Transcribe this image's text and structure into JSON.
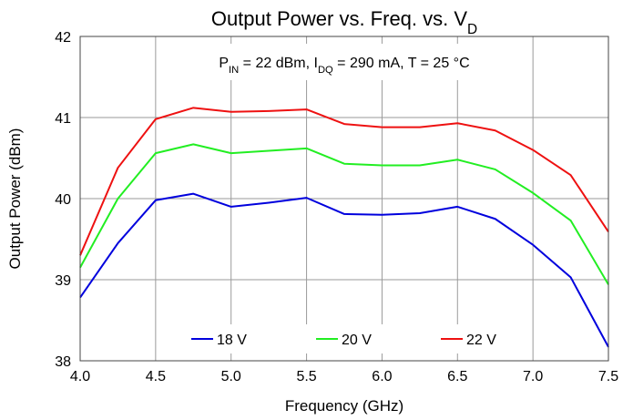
{
  "chart_data": {
    "type": "line",
    "title": [
      {
        "text": "Output Power vs. Freq. vs. V"
      },
      {
        "text": "D",
        "sub": true
      }
    ],
    "annotation": [
      {
        "text": "P"
      },
      {
        "text": "IN",
        "sub": true
      },
      {
        "text": " = 22 dBm, I"
      },
      {
        "text": "DQ",
        "sub": true
      },
      {
        "text": " = 290 mA, T = 25 °C"
      }
    ],
    "x_label": "Frequency (GHz)",
    "y_label": "Output Power (dBm)",
    "x": [
      4.0,
      4.25,
      4.5,
      4.75,
      5.0,
      5.25,
      5.5,
      5.75,
      6.0,
      6.25,
      6.5,
      6.75,
      7.0,
      7.25,
      7.5
    ],
    "series": [
      {
        "name": "18 V",
        "color": "#0000dd",
        "values": [
          38.78,
          39.45,
          39.98,
          40.06,
          39.9,
          39.95,
          40.01,
          39.81,
          39.8,
          39.82,
          39.9,
          39.75,
          39.43,
          39.03,
          38.17
        ]
      },
      {
        "name": "20 V",
        "color": "#22ee22",
        "values": [
          39.15,
          40.0,
          40.56,
          40.67,
          40.56,
          40.59,
          40.62,
          40.43,
          40.41,
          40.41,
          40.48,
          40.36,
          40.07,
          39.73,
          38.94
        ]
      },
      {
        "name": "22 V",
        "color": "#ee1111",
        "values": [
          39.3,
          40.38,
          40.98,
          41.12,
          41.07,
          41.08,
          41.1,
          40.92,
          40.88,
          40.88,
          40.93,
          40.84,
          40.6,
          40.29,
          39.59
        ]
      }
    ],
    "xlim": [
      4,
      7.5
    ],
    "xticks": [
      {
        "value": 4,
        "label": "4.0"
      },
      4.5,
      {
        "value": 5,
        "label": "5.0"
      },
      5.5,
      {
        "value": 6,
        "label": "6.0"
      },
      6.5,
      {
        "value": 7,
        "label": "7.0"
      },
      7.5
    ],
    "ylim": [
      38,
      42
    ],
    "yticks": [
      38,
      39,
      40,
      41,
      42
    ],
    "grid": true,
    "legend": "bottom"
  }
}
